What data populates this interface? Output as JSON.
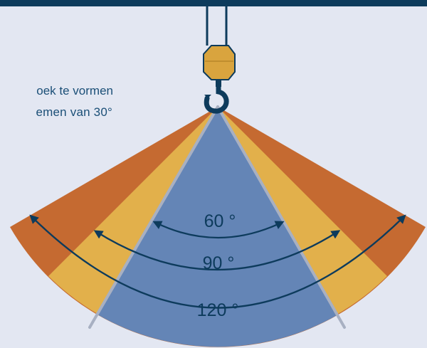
{
  "caption": {
    "line1": "oek te vormen",
    "line2": "emen van 30°"
  },
  "angles": [
    {
      "label": "60 °"
    },
    {
      "label": "90 °"
    },
    {
      "label": "120 °"
    }
  ],
  "colors": {
    "background": "#e3e7f2",
    "top_bar": "#0d3b5c",
    "sector_120": "#c56a31",
    "sector_90": "#e2b04b",
    "sector_60": "#6485b6",
    "arrow": "#0d3b5c",
    "hook": "#0d3b5c",
    "hook_block": "#d9a43e",
    "slings": "#a8b0c2"
  },
  "icons": [
    "crane-hook-icon"
  ]
}
